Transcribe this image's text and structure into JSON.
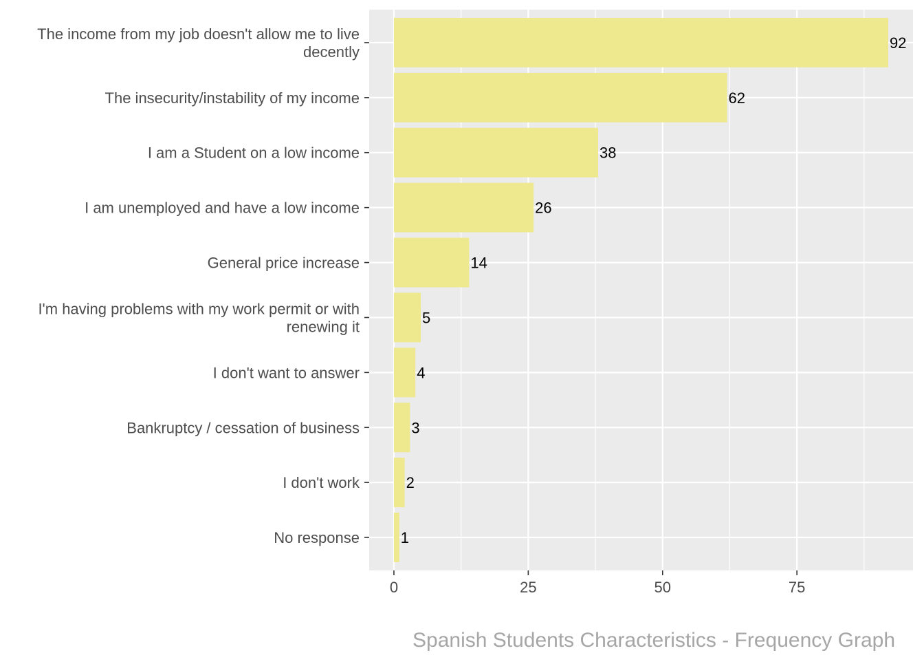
{
  "chart_data": {
    "type": "bar",
    "orientation": "horizontal",
    "title": "",
    "caption": "Spanish Students Characteristics - Frequency Graph",
    "xlabel": "",
    "ylabel": "",
    "xlim": [
      -4.6,
      96.6
    ],
    "x_ticks": [
      0,
      25,
      50,
      75
    ],
    "x_tick_labels": [
      "0",
      "25",
      "50",
      "75"
    ],
    "grid": true,
    "categories": [
      [
        "The income from my job doesn't allow me to live",
        "decently"
      ],
      [
        "The insecurity/instability of my income"
      ],
      [
        "I am a Student on a low income"
      ],
      [
        "I am unemployed and have a low income"
      ],
      [
        "General price increase"
      ],
      [
        "I'm having problems with my work permit or with",
        "renewing it"
      ],
      [
        "I don't want to answer"
      ],
      [
        "Bankruptcy / cessation of business"
      ],
      [
        "I don't work"
      ],
      [
        "No response"
      ]
    ],
    "values": [
      92,
      62,
      38,
      26,
      14,
      5,
      4,
      3,
      2,
      1
    ],
    "data_labels": [
      "92",
      "62",
      "38",
      "26",
      "14",
      "5",
      "4",
      "3",
      "2",
      "1"
    ],
    "colors": {
      "bar": "#eee88e",
      "panel": "#ebebeb",
      "grid": "#ffffff",
      "tick": "#333333"
    }
  }
}
